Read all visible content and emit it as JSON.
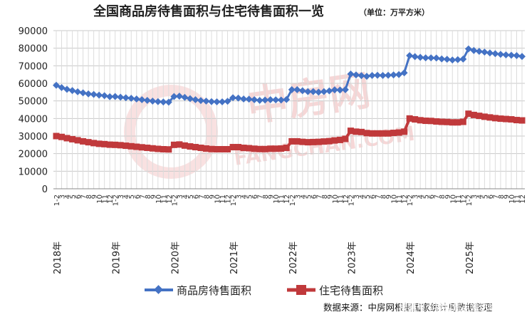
{
  "chart_data": {
    "type": "line",
    "title": "全国商品房待售面积与住宅待售面积一览",
    "subtitle": "（单位：万平方米）",
    "ylim": [
      0,
      90000
    ],
    "yticks": [
      0,
      10000,
      20000,
      30000,
      40000,
      50000,
      60000,
      70000,
      80000,
      90000
    ],
    "x_year_labels": [
      "2018年",
      "2019年",
      "2020年",
      "2021年",
      "2022年",
      "2023年",
      "2024年",
      "2025年"
    ],
    "month_tick_labels": [
      "1-2",
      "3",
      "4",
      "5",
      "6",
      "7",
      "8",
      "9",
      "10",
      "11",
      "12"
    ],
    "grid": true,
    "legend_position": "bottom",
    "series": [
      {
        "name": "商品房待售面积",
        "color": "#4472c4",
        "marker": "diamond",
        "values": [
          58900,
          57600,
          56600,
          55900,
          55200,
          54600,
          54000,
          53700,
          53300,
          53000,
          52400,
          52500,
          52100,
          51800,
          51500,
          51100,
          50700,
          50300,
          49900,
          49600,
          49400,
          49300,
          52500,
          52700,
          52000,
          51300,
          50700,
          50200,
          49900,
          49600,
          49500,
          49500,
          49800,
          51800,
          51600,
          51100,
          51000,
          50700,
          50300,
          50500,
          50700,
          50600,
          50500,
          50800,
          56400,
          56400,
          55800,
          55300,
          55300,
          55000,
          55300,
          55700,
          56300,
          56200,
          56400,
          65300,
          64800,
          64400,
          64000,
          64500,
          64600,
          64500,
          64600,
          64800,
          65000,
          66000,
          75800,
          75200,
          74800,
          74500,
          74500,
          74400,
          73900,
          73700,
          73300,
          73500,
          73800,
          79600,
          78700,
          78200,
          77800,
          77300,
          76900,
          76500,
          76200,
          76000,
          75800,
          75300
        ]
      },
      {
        "name": "住宅待售面积",
        "color": "#c0393b",
        "marker": "square",
        "values": [
          30000,
          29500,
          28800,
          28200,
          27600,
          27000,
          26500,
          26000,
          25600,
          25400,
          25100,
          25000,
          24800,
          24500,
          24200,
          23900,
          23600,
          23300,
          23000,
          22700,
          22500,
          22400,
          25000,
          25200,
          24600,
          24100,
          23700,
          23300,
          22900,
          22600,
          22500,
          22500,
          22500,
          23700,
          23700,
          23300,
          23100,
          22800,
          22600,
          22600,
          22800,
          22800,
          22900,
          23300,
          27000,
          27000,
          26700,
          26500,
          26600,
          26700,
          26900,
          27100,
          27500,
          27800,
          28400,
          33000,
          32500,
          32300,
          31700,
          31500,
          31500,
          31500,
          31500,
          31800,
          32000,
          32500,
          40000,
          39500,
          39000,
          38700,
          38600,
          38300,
          38100,
          38000,
          37800,
          37800,
          38100,
          42700,
          42000,
          41500,
          41000,
          40600,
          40200,
          39900,
          39700,
          39500,
          39100,
          38900
        ]
      }
    ]
  },
  "watermark": {
    "text": "中房网",
    "url": "FANGCHAN.COM"
  },
  "source_note": "数据来源：中房网根据国家统计局数据整理",
  "overlay_watermark": "搜狐号@搜狐焦点潍坊站"
}
